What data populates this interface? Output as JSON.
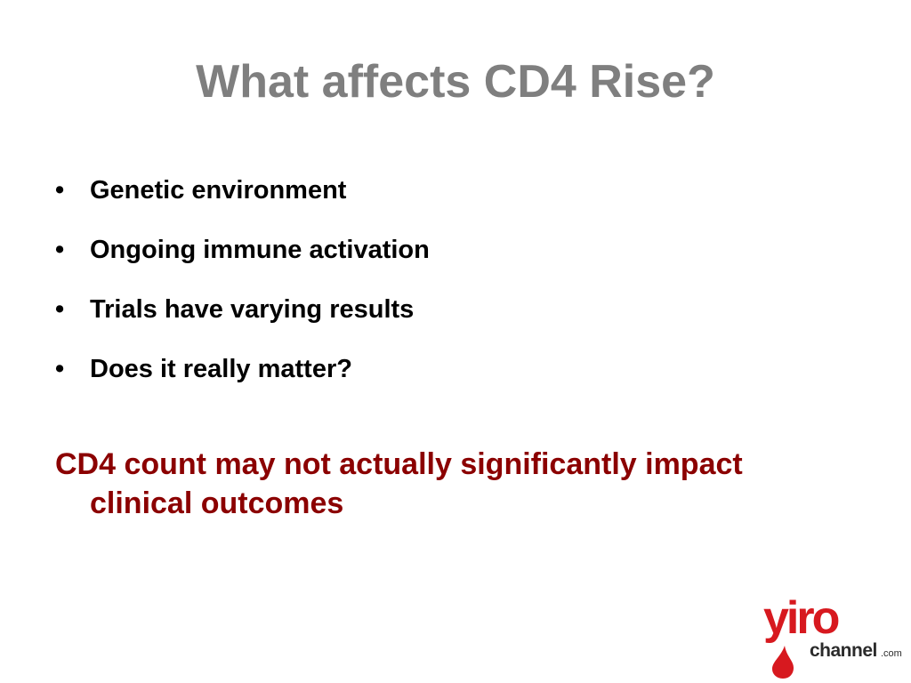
{
  "slide": {
    "title": "What affects CD4 Rise?",
    "bullets": [
      "Genetic environment",
      "Ongoing immune activation",
      "Trials have varying results",
      "Does it really matter?"
    ],
    "bullet_symbol": "•",
    "note_line1": "CD4 count may not actually significantly impact",
    "note_line2": "clinical outcomes"
  },
  "logo": {
    "word1": "yiro",
    "word2": "channel",
    "suffix": ".com"
  },
  "colors": {
    "title": "#7f7f7f",
    "bullet_text": "#000000",
    "note": "#8b0000",
    "logo_red": "#d7191f",
    "logo_dark": "#2b2b2b"
  }
}
